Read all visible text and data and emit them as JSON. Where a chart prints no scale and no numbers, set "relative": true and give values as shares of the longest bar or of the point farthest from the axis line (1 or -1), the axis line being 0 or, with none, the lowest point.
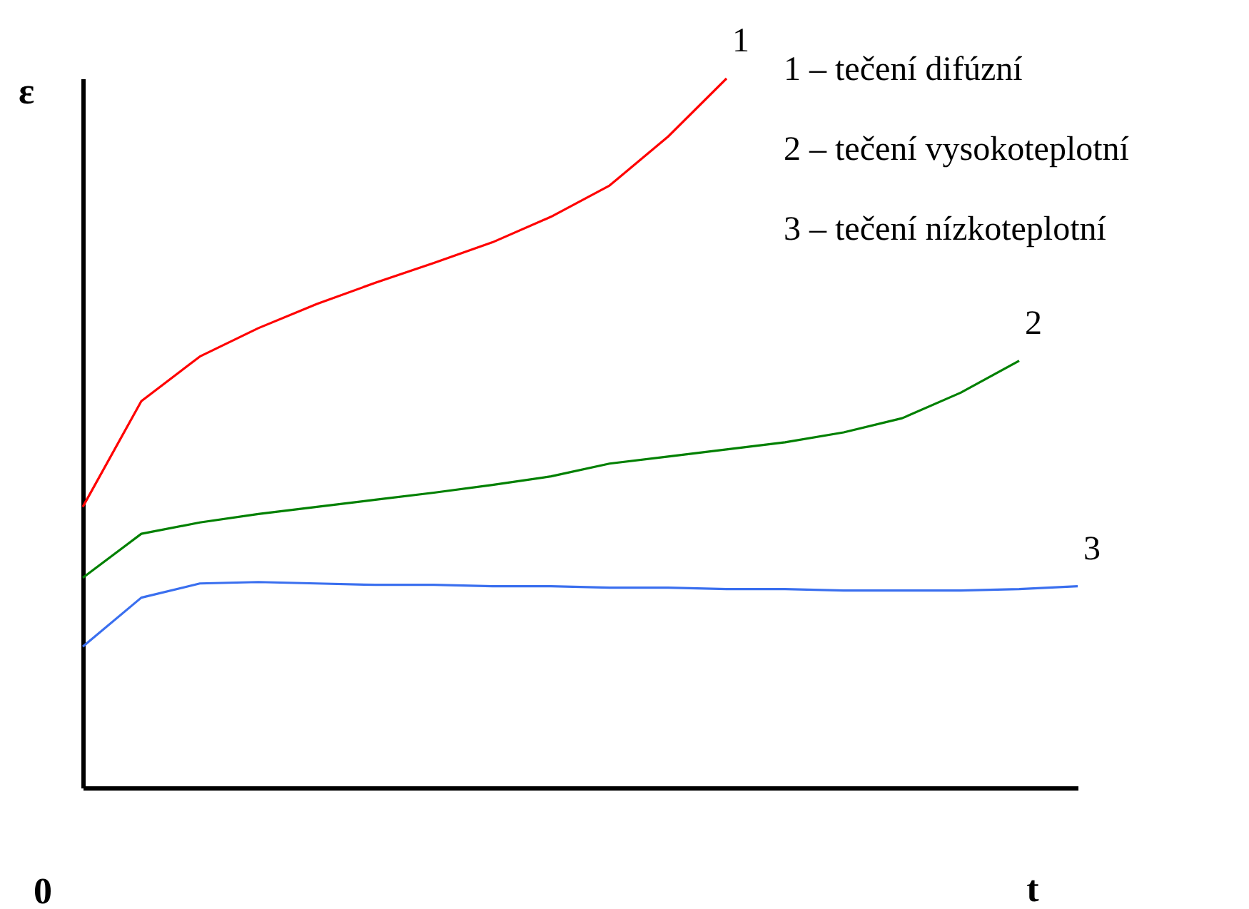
{
  "chart_data": {
    "type": "line",
    "relative": true,
    "xlabel": "t",
    "ylabel": "ε",
    "categories": [
      null,
      null,
      null,
      null,
      null,
      null,
      null,
      null,
      null,
      null,
      null,
      null,
      null,
      null,
      null,
      null,
      null,
      null
    ],
    "series": [
      {
        "name": "1",
        "color": "#ff0000",
        "values": [
          0.396,
          0.545,
          0.608,
          0.648,
          0.682,
          0.712,
          0.74,
          0.769,
          0.805,
          0.849,
          0.918,
          1,
          null,
          null,
          null,
          null,
          null,
          null
        ]
      },
      {
        "name": "2",
        "color": "#008000",
        "values": [
          0.296,
          0.358,
          0.374,
          0.386,
          0.396,
          0.406,
          0.416,
          0.427,
          0.439,
          0.457,
          0.467,
          0.477,
          0.487,
          0.501,
          0.521,
          0.557,
          0.602,
          null
        ]
      },
      {
        "name": "3",
        "color": "#3a6fef",
        "values": [
          0.199,
          0.268,
          0.288,
          0.29,
          0.288,
          0.286,
          0.286,
          0.284,
          0.284,
          0.282,
          0.282,
          0.28,
          0.28,
          0.278,
          0.278,
          0.278,
          0.28,
          0.284
        ]
      }
    ],
    "annotations": [
      "1 – tečení difúzní",
      "2 – tečení vysokoteplotní",
      "3 – tečení nízkoteplotní",
      "0"
    ],
    "grid": false,
    "marker": "none",
    "line_style": "solid"
  }
}
